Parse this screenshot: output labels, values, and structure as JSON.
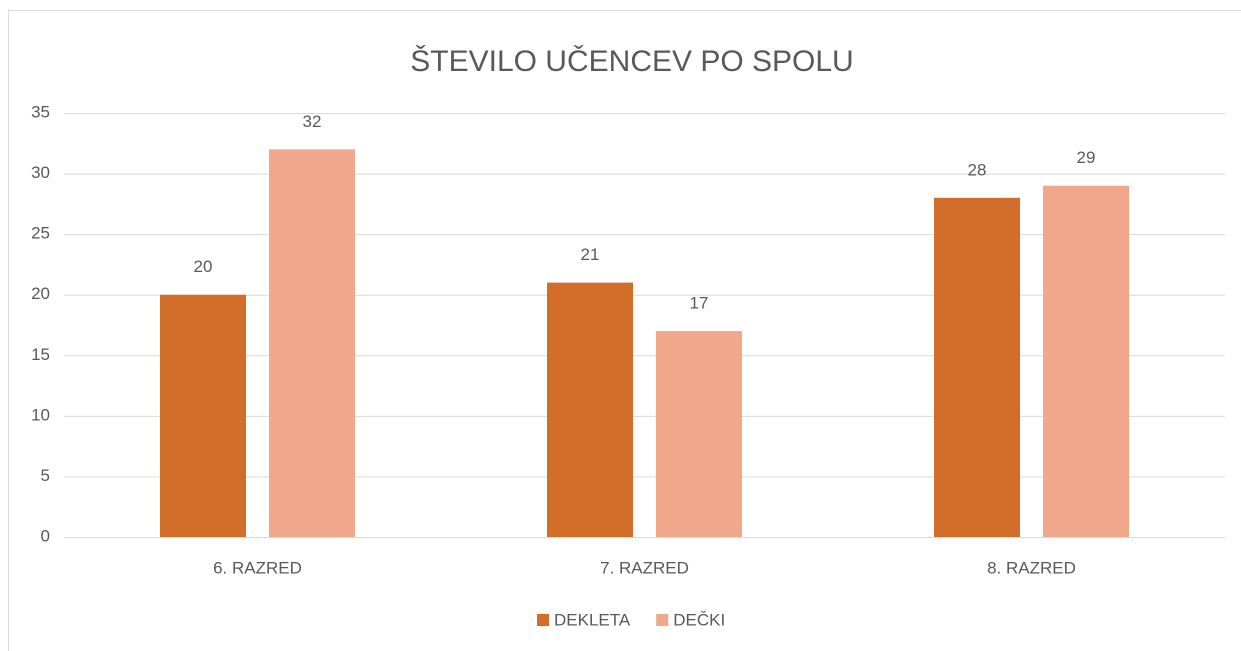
{
  "chart_data": {
    "type": "bar",
    "title": "ŠTEVILO UČENCEV PO SPOLU",
    "categories": [
      "6. RAZRED",
      "7. RAZRED",
      "8. RAZRED"
    ],
    "series": [
      {
        "name": "DEKLETA",
        "color": "#d26e2a",
        "values": [
          20,
          21,
          28
        ]
      },
      {
        "name": "DEČKI",
        "color": "#f1a88a",
        "values": [
          32,
          17,
          29
        ]
      }
    ],
    "ylim": [
      0,
      35
    ],
    "yticks": [
      0,
      5,
      10,
      15,
      20,
      25,
      30,
      35
    ],
    "grid": true,
    "legend": "bottom"
  }
}
